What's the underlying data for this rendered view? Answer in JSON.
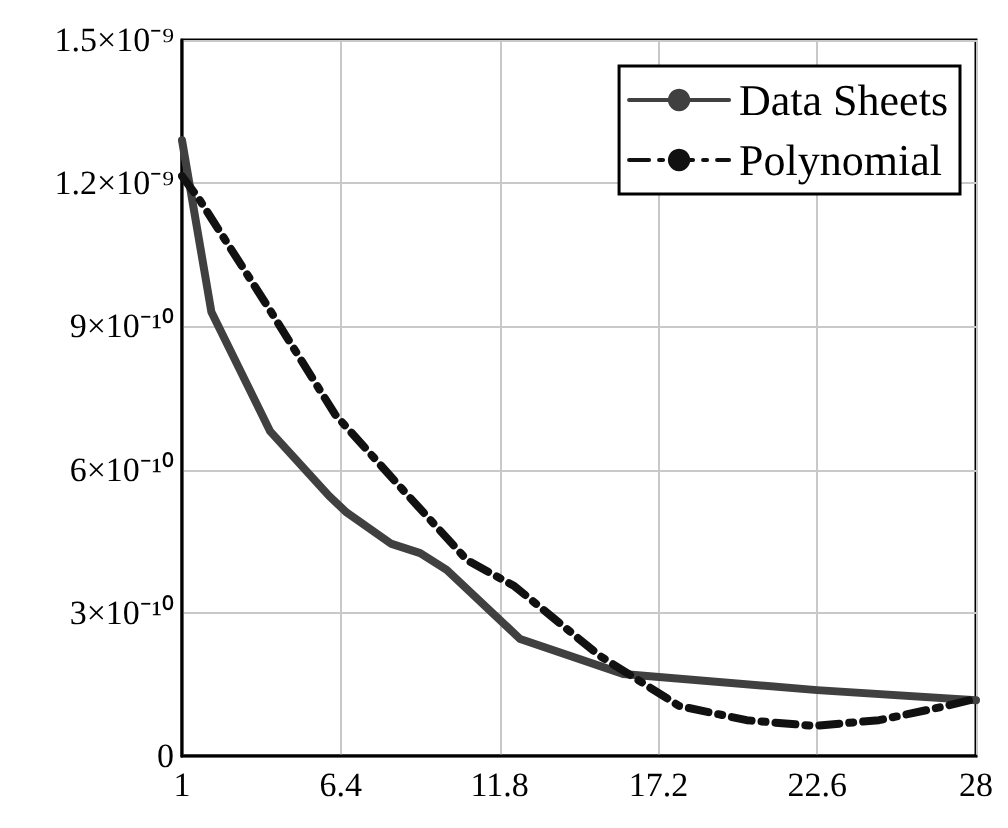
{
  "chart_data": {
    "type": "line",
    "xlim": [
      1,
      28
    ],
    "xticks": [
      1,
      6.4,
      11.8,
      17.2,
      22.6,
      28
    ],
    "ylim": [
      0,
      1.5e-09
    ],
    "yticks": [
      {
        "value": 0,
        "label": "0"
      },
      {
        "value": 3e-10,
        "label": "3×10⁻¹⁰"
      },
      {
        "value": 6e-10,
        "label": "6×10⁻¹⁰"
      },
      {
        "value": 9e-10,
        "label": "9×10⁻¹⁰"
      },
      {
        "value": 1.2e-09,
        "label": "1.2×10⁻⁹"
      },
      {
        "value": 1.5e-09,
        "label": "1.5×10⁻⁹"
      }
    ],
    "grid": true,
    "legend": "top right",
    "marker": "none",
    "series": [
      {
        "name": "Data Sheets",
        "color": "#404040",
        "line_style": "solid",
        "x": [
          1,
          2.0,
          4.0,
          6.0,
          6.6,
          8.1,
          9.1,
          10.0,
          12.5,
          16.0,
          22.6,
          28
        ],
        "values": [
          1.29e-09,
          9.3e-10,
          6.8e-10,
          5.45e-10,
          5.1e-10,
          4.45e-10,
          4.25e-10,
          3.9e-10,
          2.45e-10,
          1.72e-10,
          1.38e-10,
          1.17e-10
        ]
      },
      {
        "name": "Polynomial",
        "color": "#111111",
        "line_style": "dashdot",
        "x": [
          1,
          1.6,
          3.9,
          6.2,
          8.4,
          10.7,
          12.3,
          15.2,
          17.9,
          20.2,
          22.5,
          24.7,
          27.0,
          28
        ],
        "values": [
          1.215e-09,
          1.165e-09,
          9.43e-10,
          7.16e-10,
          5.65e-10,
          4.1e-10,
          3.56e-10,
          2.1e-10,
          1.05e-10,
          7.5e-11,
          6.3e-11,
          7.5e-11,
          1.05e-10,
          1.2e-10
        ]
      }
    ]
  }
}
